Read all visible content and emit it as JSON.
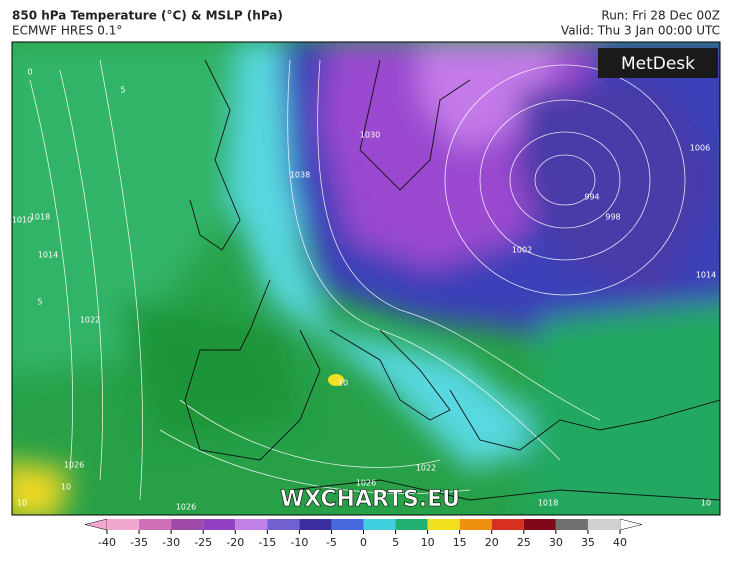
{
  "header": {
    "title": "850 hPa Temperature (°C) & MSLP (hPa)",
    "subtitle": "ECMWF HRES 0.1°",
    "run": "Run: Fri 28 Dec 00Z",
    "valid": "Valid: Thu 3 Jan 00:00 UTC"
  },
  "logo": "MetDesk",
  "watermark": "WXCHARTS.EU",
  "contour_labels": [
    "1038",
    "1030",
    "1002",
    "994",
    "998",
    "1006",
    "1014",
    "1010",
    "1018",
    "1014",
    "1022",
    "1026",
    "1026",
    "1026",
    "1022",
    "1018",
    "10",
    "10",
    "10",
    "10",
    "5",
    "0",
    "5"
  ],
  "colorbar": {
    "ticks": [
      -40,
      -35,
      -30,
      -25,
      -20,
      -15,
      -10,
      -5,
      0,
      5,
      10,
      15,
      20,
      25,
      30,
      35,
      40
    ],
    "colors": [
      "#f0a8d0",
      "#d070b8",
      "#a04aa8",
      "#9040c0",
      "#c080e8",
      "#7060d0",
      "#3a2ea0",
      "#4868e0",
      "#40d0e0",
      "#20b070",
      "#f0e020",
      "#f09010",
      "#d83020",
      "#800818",
      "#707070",
      "#d0d0d0"
    ]
  }
}
